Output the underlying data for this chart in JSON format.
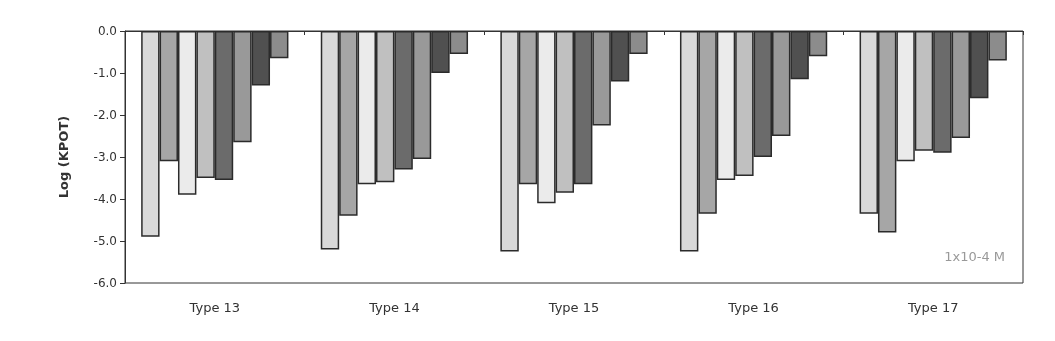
{
  "chart_data": {
    "type": "bar",
    "ylabel": "Log (KPOT)",
    "categories": [
      "Type 13",
      "Type 14",
      "Type 15",
      "Type 16",
      "Type 17"
    ],
    "series": [
      {
        "color": "#d9d9d9",
        "values": [
          -4.9,
          -5.2,
          -5.25,
          -5.25,
          -4.35
        ]
      },
      {
        "color": "#a6a6a6",
        "values": [
          -3.1,
          -4.4,
          -3.65,
          -4.35,
          -4.8
        ]
      },
      {
        "color": "#ebebeb",
        "values": [
          -3.9,
          -3.65,
          -4.1,
          -3.55,
          -3.1
        ]
      },
      {
        "color": "#c0c0c0",
        "values": [
          -3.5,
          -3.6,
          -3.85,
          -3.45,
          -2.85
        ]
      },
      {
        "color": "#6b6b6b",
        "values": [
          -3.55,
          -3.3,
          -3.65,
          -3.0,
          -2.9
        ]
      },
      {
        "color": "#999999",
        "values": [
          -2.65,
          -3.05,
          -2.25,
          -2.5,
          -2.55
        ]
      },
      {
        "color": "#505050",
        "values": [
          -1.3,
          -1.0,
          -1.2,
          -1.15,
          -1.6
        ]
      },
      {
        "color": "#8c8c8c",
        "values": [
          -0.65,
          -0.55,
          -0.55,
          -0.6,
          -0.7
        ]
      }
    ],
    "ylim": [
      -6,
      0
    ],
    "yticks": [
      {
        "value": -6,
        "label": "-6.0"
      },
      {
        "value": -5,
        "label": "-5.0"
      },
      {
        "value": -4,
        "label": "-4.0"
      },
      {
        "value": -3,
        "label": "-3.0"
      },
      {
        "value": -2,
        "label": "-2.0"
      },
      {
        "value": -1,
        "label": "-1.0"
      },
      {
        "value": 0,
        "label": "0.0"
      }
    ],
    "annotations": [
      "1x10-4 M"
    ],
    "grid": false
  }
}
